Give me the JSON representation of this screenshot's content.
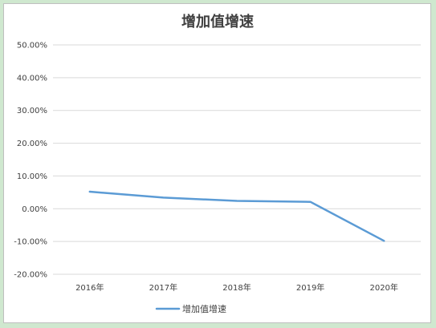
{
  "chart_data": {
    "type": "line",
    "title": "增加值增速",
    "categories": [
      "2016年",
      "2017年",
      "2018年",
      "2019年",
      "2020年"
    ],
    "series": [
      {
        "name": "增加值增速",
        "values": [
          5.2,
          3.4,
          2.4,
          2.1,
          -9.8
        ]
      }
    ],
    "ylim": [
      -20,
      50
    ],
    "ytick_step": 10,
    "ytick_labels": [
      "-20.00%",
      "-10.00%",
      "0.00%",
      "10.00%",
      "20.00%",
      "30.00%",
      "40.00%",
      "50.00%"
    ],
    "grid": true,
    "legend_position": "bottom",
    "colors": {
      "series": "#5b9bd5",
      "grid": "#d9d9d9",
      "text": "#404040",
      "frame_bg": "#cfe8cf"
    }
  }
}
